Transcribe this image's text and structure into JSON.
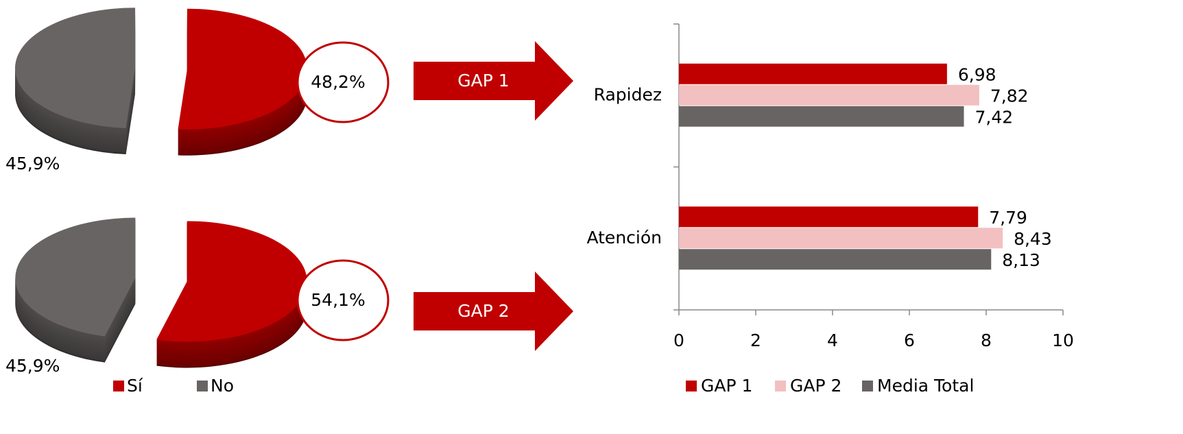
{
  "chart_data": [
    {
      "type": "pie",
      "categories": [
        "Sí",
        "No"
      ],
      "colors": [
        "#c00000",
        "#686463"
      ],
      "values": [
        48.2,
        45.9
      ],
      "value_labels": [
        "48,2%",
        "45,9%"
      ],
      "annotation": "GAP 1"
    },
    {
      "type": "pie",
      "colors": [
        "#c00000",
        "#686463"
      ],
      "values": [
        54.1,
        45.9
      ],
      "value_labels": [
        "54,1%",
        "45,9%"
      ],
      "annotation": "GAP 2"
    },
    {
      "type": "bar",
      "orientation": "horizontal",
      "categories": [
        "Rapidez",
        "Atención"
      ],
      "series": [
        {
          "name": "GAP 1",
          "color": "#c00000",
          "values": [
            6.98,
            7.79
          ],
          "value_labels": [
            "6,98",
            "7,79"
          ]
        },
        {
          "name": "GAP 2",
          "color": "#f2c0c0",
          "values": [
            7.82,
            8.43
          ],
          "value_labels": [
            "7,82",
            "8,43"
          ]
        },
        {
          "name": "Media Total",
          "color": "#686463",
          "values": [
            7.42,
            8.13
          ],
          "value_labels": [
            "7,42",
            "8,13"
          ]
        }
      ],
      "xlim": [
        0,
        10
      ],
      "xticks": [
        0,
        2,
        4,
        6,
        8,
        10
      ]
    }
  ]
}
